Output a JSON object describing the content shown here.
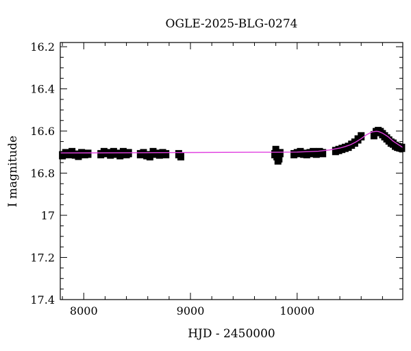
{
  "chart_data": {
    "type": "scatter",
    "title": "OGLE-2025-BLG-0274",
    "xlabel": "HJD - 2450000",
    "ylabel": "I magnitude",
    "xlim": [
      7780,
      10990
    ],
    "ylim": [
      17.4,
      16.18
    ],
    "y_inverted": true,
    "grid": false,
    "x_ticks": [
      {
        "value": 8000,
        "label": "8000"
      },
      {
        "value": 9000,
        "label": "9000"
      },
      {
        "value": 10000,
        "label": "10000"
      }
    ],
    "y_ticks": [
      {
        "value": 16.2,
        "label": "16.2"
      },
      {
        "value": 16.4,
        "label": "16.4"
      },
      {
        "value": 16.6,
        "label": "16.6"
      },
      {
        "value": 16.8,
        "label": "16.8"
      },
      {
        "value": 17.0,
        "label": "17"
      },
      {
        "value": 17.2,
        "label": "17.2"
      },
      {
        "value": 17.4,
        "label": "17.4"
      }
    ],
    "series": [
      {
        "kind": "observations_with_errorbars",
        "color": "#000000",
        "typical_error": 0.015,
        "data": [
          [
            7800,
            16.715
          ],
          [
            7830,
            16.705
          ],
          [
            7860,
            16.71
          ],
          [
            7890,
            16.7
          ],
          [
            7920,
            16.712
          ],
          [
            7950,
            16.718
          ],
          [
            7980,
            16.705
          ],
          [
            8010,
            16.71
          ],
          [
            8040,
            16.708
          ],
          [
            8160,
            16.71
          ],
          [
            8190,
            16.7
          ],
          [
            8220,
            16.705
          ],
          [
            8250,
            16.712
          ],
          [
            8280,
            16.7
          ],
          [
            8310,
            16.708
          ],
          [
            8340,
            16.715
          ],
          [
            8370,
            16.7
          ],
          [
            8400,
            16.71
          ],
          [
            8420,
            16.705
          ],
          [
            8530,
            16.71
          ],
          [
            8560,
            16.705
          ],
          [
            8590,
            16.715
          ],
          [
            8620,
            16.72
          ],
          [
            8650,
            16.7
          ],
          [
            8680,
            16.708
          ],
          [
            8710,
            16.712
          ],
          [
            8740,
            16.705
          ],
          [
            8770,
            16.71
          ],
          [
            8890,
            16.71
          ],
          [
            8910,
            16.72
          ],
          [
            9790,
            16.71
          ],
          [
            9800,
            16.69
          ],
          [
            9810,
            16.72
          ],
          [
            9820,
            16.74
          ],
          [
            9830,
            16.73
          ],
          [
            9840,
            16.705
          ],
          [
            9970,
            16.71
          ],
          [
            10000,
            16.705
          ],
          [
            10030,
            16.7
          ],
          [
            10060,
            16.708
          ],
          [
            10090,
            16.71
          ],
          [
            10120,
            16.705
          ],
          [
            10150,
            16.7
          ],
          [
            10180,
            16.708
          ],
          [
            10210,
            16.7
          ],
          [
            10240,
            16.705
          ],
          [
            10360,
            16.695
          ],
          [
            10390,
            16.69
          ],
          [
            10420,
            16.685
          ],
          [
            10450,
            16.68
          ],
          [
            10480,
            16.675
          ],
          [
            10510,
            16.665
          ],
          [
            10540,
            16.655
          ],
          [
            10570,
            16.64
          ],
          [
            10600,
            16.625
          ],
          [
            10720,
            16.62
          ],
          [
            10740,
            16.605
          ],
          [
            10760,
            16.6
          ],
          [
            10780,
            16.605
          ],
          [
            10800,
            16.615
          ],
          [
            10820,
            16.625
          ],
          [
            10840,
            16.635
          ],
          [
            10860,
            16.645
          ],
          [
            10880,
            16.655
          ],
          [
            10900,
            16.66
          ],
          [
            10920,
            16.67
          ],
          [
            10940,
            16.675
          ],
          [
            10960,
            16.678
          ],
          [
            10980,
            16.68
          ]
        ]
      },
      {
        "kind": "model_curve",
        "color": "#e040e0",
        "data": [
          [
            7780,
            16.704
          ],
          [
            8500,
            16.703
          ],
          [
            9000,
            16.702
          ],
          [
            9600,
            16.701
          ],
          [
            9800,
            16.701
          ],
          [
            10000,
            16.7
          ],
          [
            10200,
            16.696
          ],
          [
            10300,
            16.69
          ],
          [
            10400,
            16.681
          ],
          [
            10450,
            16.674
          ],
          [
            10500,
            16.665
          ],
          [
            10550,
            16.652
          ],
          [
            10600,
            16.636
          ],
          [
            10650,
            16.618
          ],
          [
            10700,
            16.605
          ],
          [
            10740,
            16.601
          ],
          [
            10760,
            16.602
          ],
          [
            10800,
            16.61
          ],
          [
            10850,
            16.626
          ],
          [
            10900,
            16.648
          ],
          [
            10950,
            16.665
          ],
          [
            10990,
            16.678
          ]
        ]
      }
    ]
  }
}
